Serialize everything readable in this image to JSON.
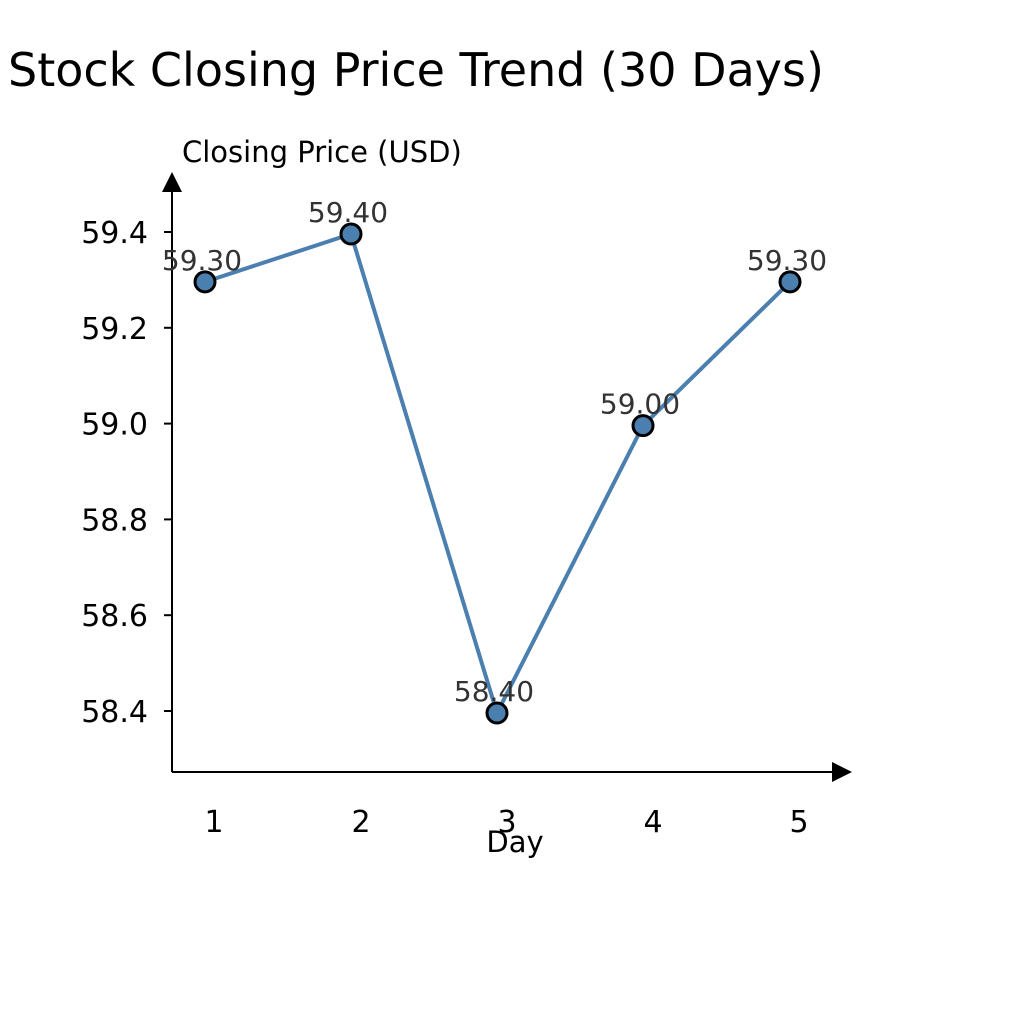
{
  "colors": {
    "line": "#4a7fb0",
    "marker_fill": "#4a7fb0",
    "marker_stroke": "#000000",
    "axis": "#000000",
    "data_label": "#333333"
  },
  "chart_data": {
    "type": "line",
    "title": "Stock Closing Price Trend (30 Days)",
    "xlabel": "Day",
    "ylabel": "Closing Price (USD)",
    "categories": [
      "1",
      "2",
      "3",
      "4",
      "5"
    ],
    "series": [
      {
        "values": [
          59.3,
          59.4,
          58.4,
          59.0,
          59.3
        ],
        "labels": [
          "59.30",
          "59.40",
          "58.40",
          "59.00",
          "59.30"
        ]
      }
    ],
    "y_ticks": [
      58.4,
      58.6,
      58.8,
      59.0,
      59.2,
      59.4
    ],
    "y_tick_labels": [
      "58.4",
      "58.6",
      "58.8",
      "59.0",
      "59.2",
      "59.4"
    ],
    "ylim": [
      58.28,
      59.52
    ],
    "grid": false,
    "legend": "none"
  }
}
